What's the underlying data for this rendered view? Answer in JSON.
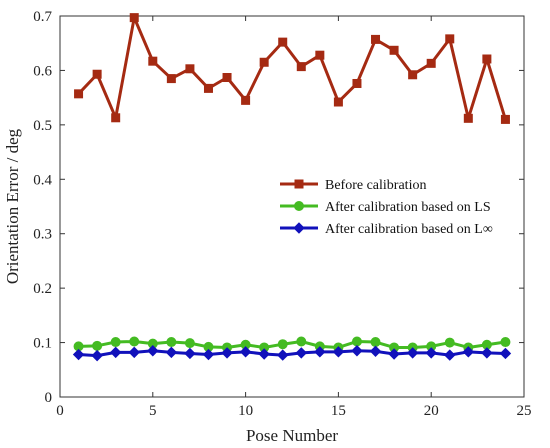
{
  "chart_data": {
    "type": "line",
    "xlabel": "Pose Number",
    "ylabel": "Orientation Error / deg",
    "xlim": [
      0,
      25
    ],
    "ylim": [
      0,
      0.7
    ],
    "x_ticks": [
      0,
      5,
      10,
      15,
      20,
      25
    ],
    "y_ticks": [
      0,
      0.1,
      0.2,
      0.3,
      0.4,
      0.5,
      0.6,
      0.7
    ],
    "x_tick_labels": [
      "0",
      "5",
      "10",
      "15",
      "20",
      "25"
    ],
    "y_tick_labels": [
      "0",
      "0.1",
      "0.2",
      "0.3",
      "0.4",
      "0.5",
      "0.6",
      "0.7"
    ],
    "grid": false,
    "legend_position": "right-middle",
    "x": [
      1,
      2,
      3,
      4,
      5,
      6,
      7,
      8,
      9,
      10,
      11,
      12,
      13,
      14,
      15,
      16,
      17,
      18,
      19,
      20,
      21,
      22,
      23,
      24
    ],
    "series": [
      {
        "name": "Before calibration",
        "color": "#a52a12",
        "marker": "square",
        "values": [
          0.557,
          0.593,
          0.513,
          0.697,
          0.617,
          0.585,
          0.603,
          0.567,
          0.587,
          0.545,
          0.615,
          0.652,
          0.607,
          0.628,
          0.542,
          0.576,
          0.657,
          0.637,
          0.592,
          0.613,
          0.658,
          0.512,
          0.621,
          0.51
        ]
      },
      {
        "name": "After calibration based on LS",
        "color": "#44bb22",
        "marker": "circle",
        "values": [
          0.093,
          0.094,
          0.101,
          0.102,
          0.098,
          0.101,
          0.099,
          0.092,
          0.091,
          0.096,
          0.091,
          0.097,
          0.102,
          0.093,
          0.091,
          0.102,
          0.101,
          0.091,
          0.091,
          0.093,
          0.1,
          0.091,
          0.096,
          0.101
        ]
      },
      {
        "name": "After calibration based on L∞",
        "color": "#1111bb",
        "marker": "diamond",
        "values": [
          0.078,
          0.076,
          0.082,
          0.082,
          0.085,
          0.082,
          0.08,
          0.078,
          0.081,
          0.083,
          0.079,
          0.077,
          0.081,
          0.083,
          0.083,
          0.085,
          0.084,
          0.079,
          0.081,
          0.081,
          0.077,
          0.083,
          0.081,
          0.08
        ]
      }
    ]
  }
}
